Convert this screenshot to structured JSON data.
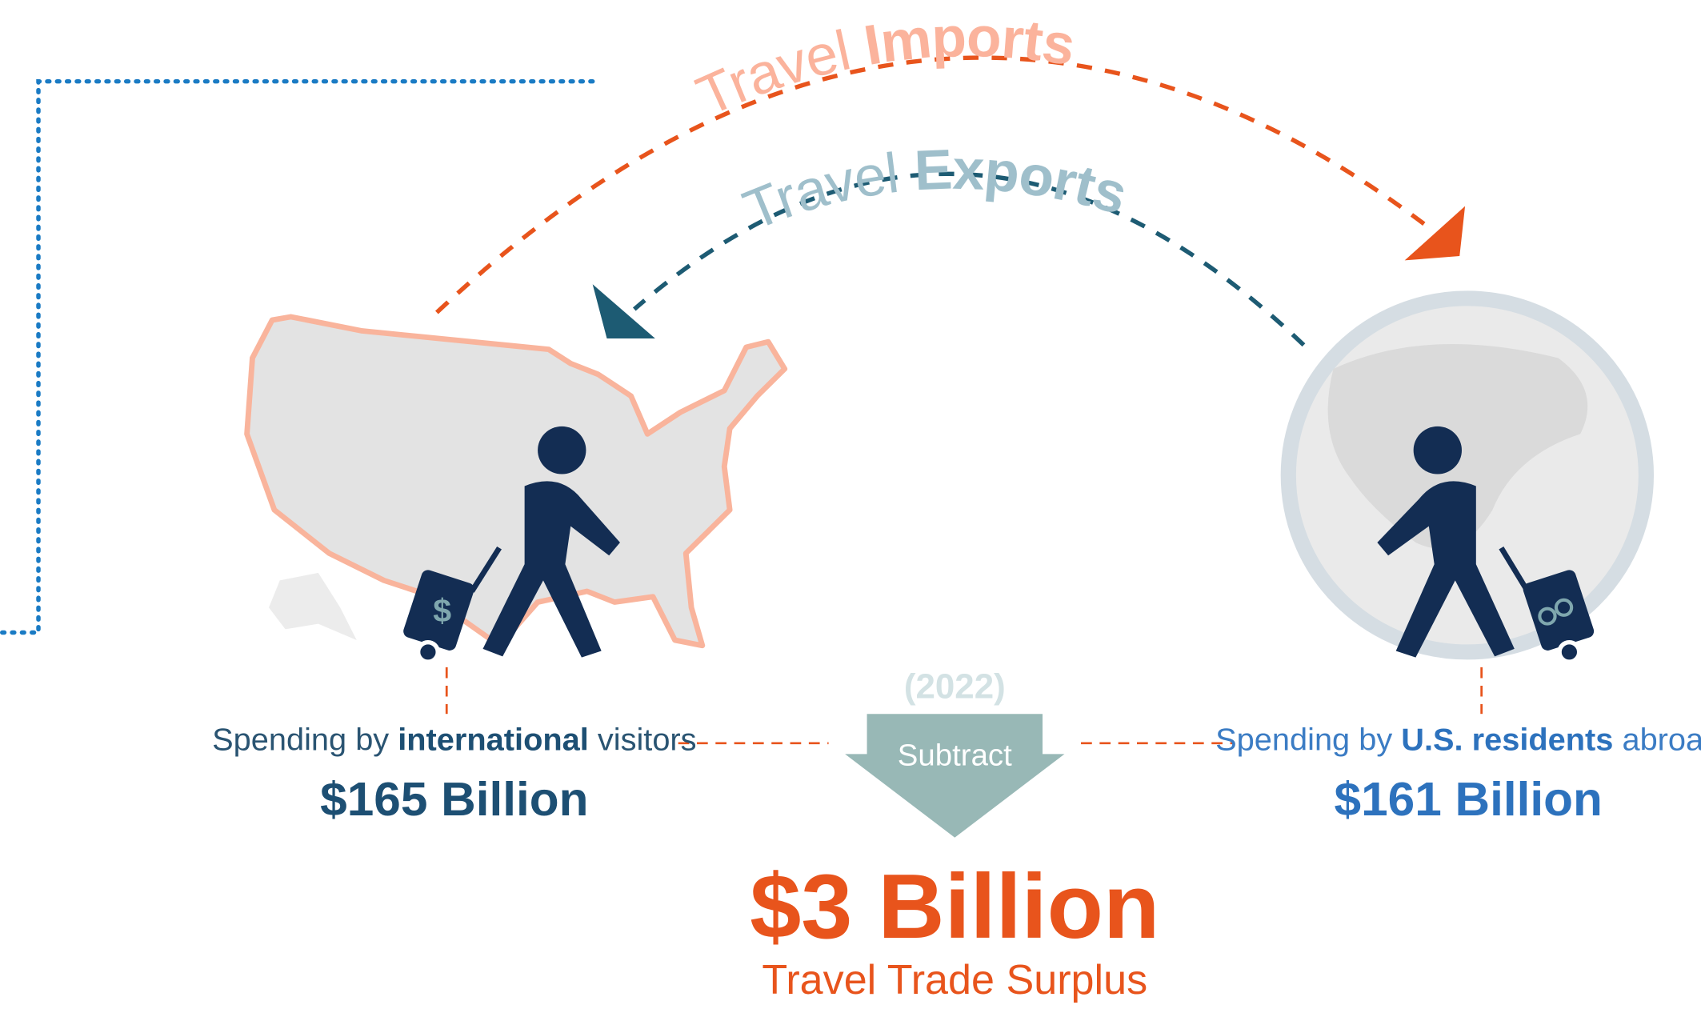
{
  "arcs": {
    "imports": {
      "prefix": "Travel",
      "word": "Imports"
    },
    "exports": {
      "prefix": "Travel",
      "word": "Exports"
    }
  },
  "left": {
    "caption_pre": "Spending by",
    "caption_bold": "international",
    "caption_post": "visitors",
    "amount": "$165 Billion"
  },
  "right": {
    "caption_pre": "Spending by",
    "caption_bold": "U.S. residents",
    "caption_post": "abroad",
    "amount": "$161 Billion"
  },
  "center": {
    "year": "(2022)",
    "operation": "Subtract",
    "result": "$3 Billion",
    "result_label": "Travel Trade Surplus"
  }
}
